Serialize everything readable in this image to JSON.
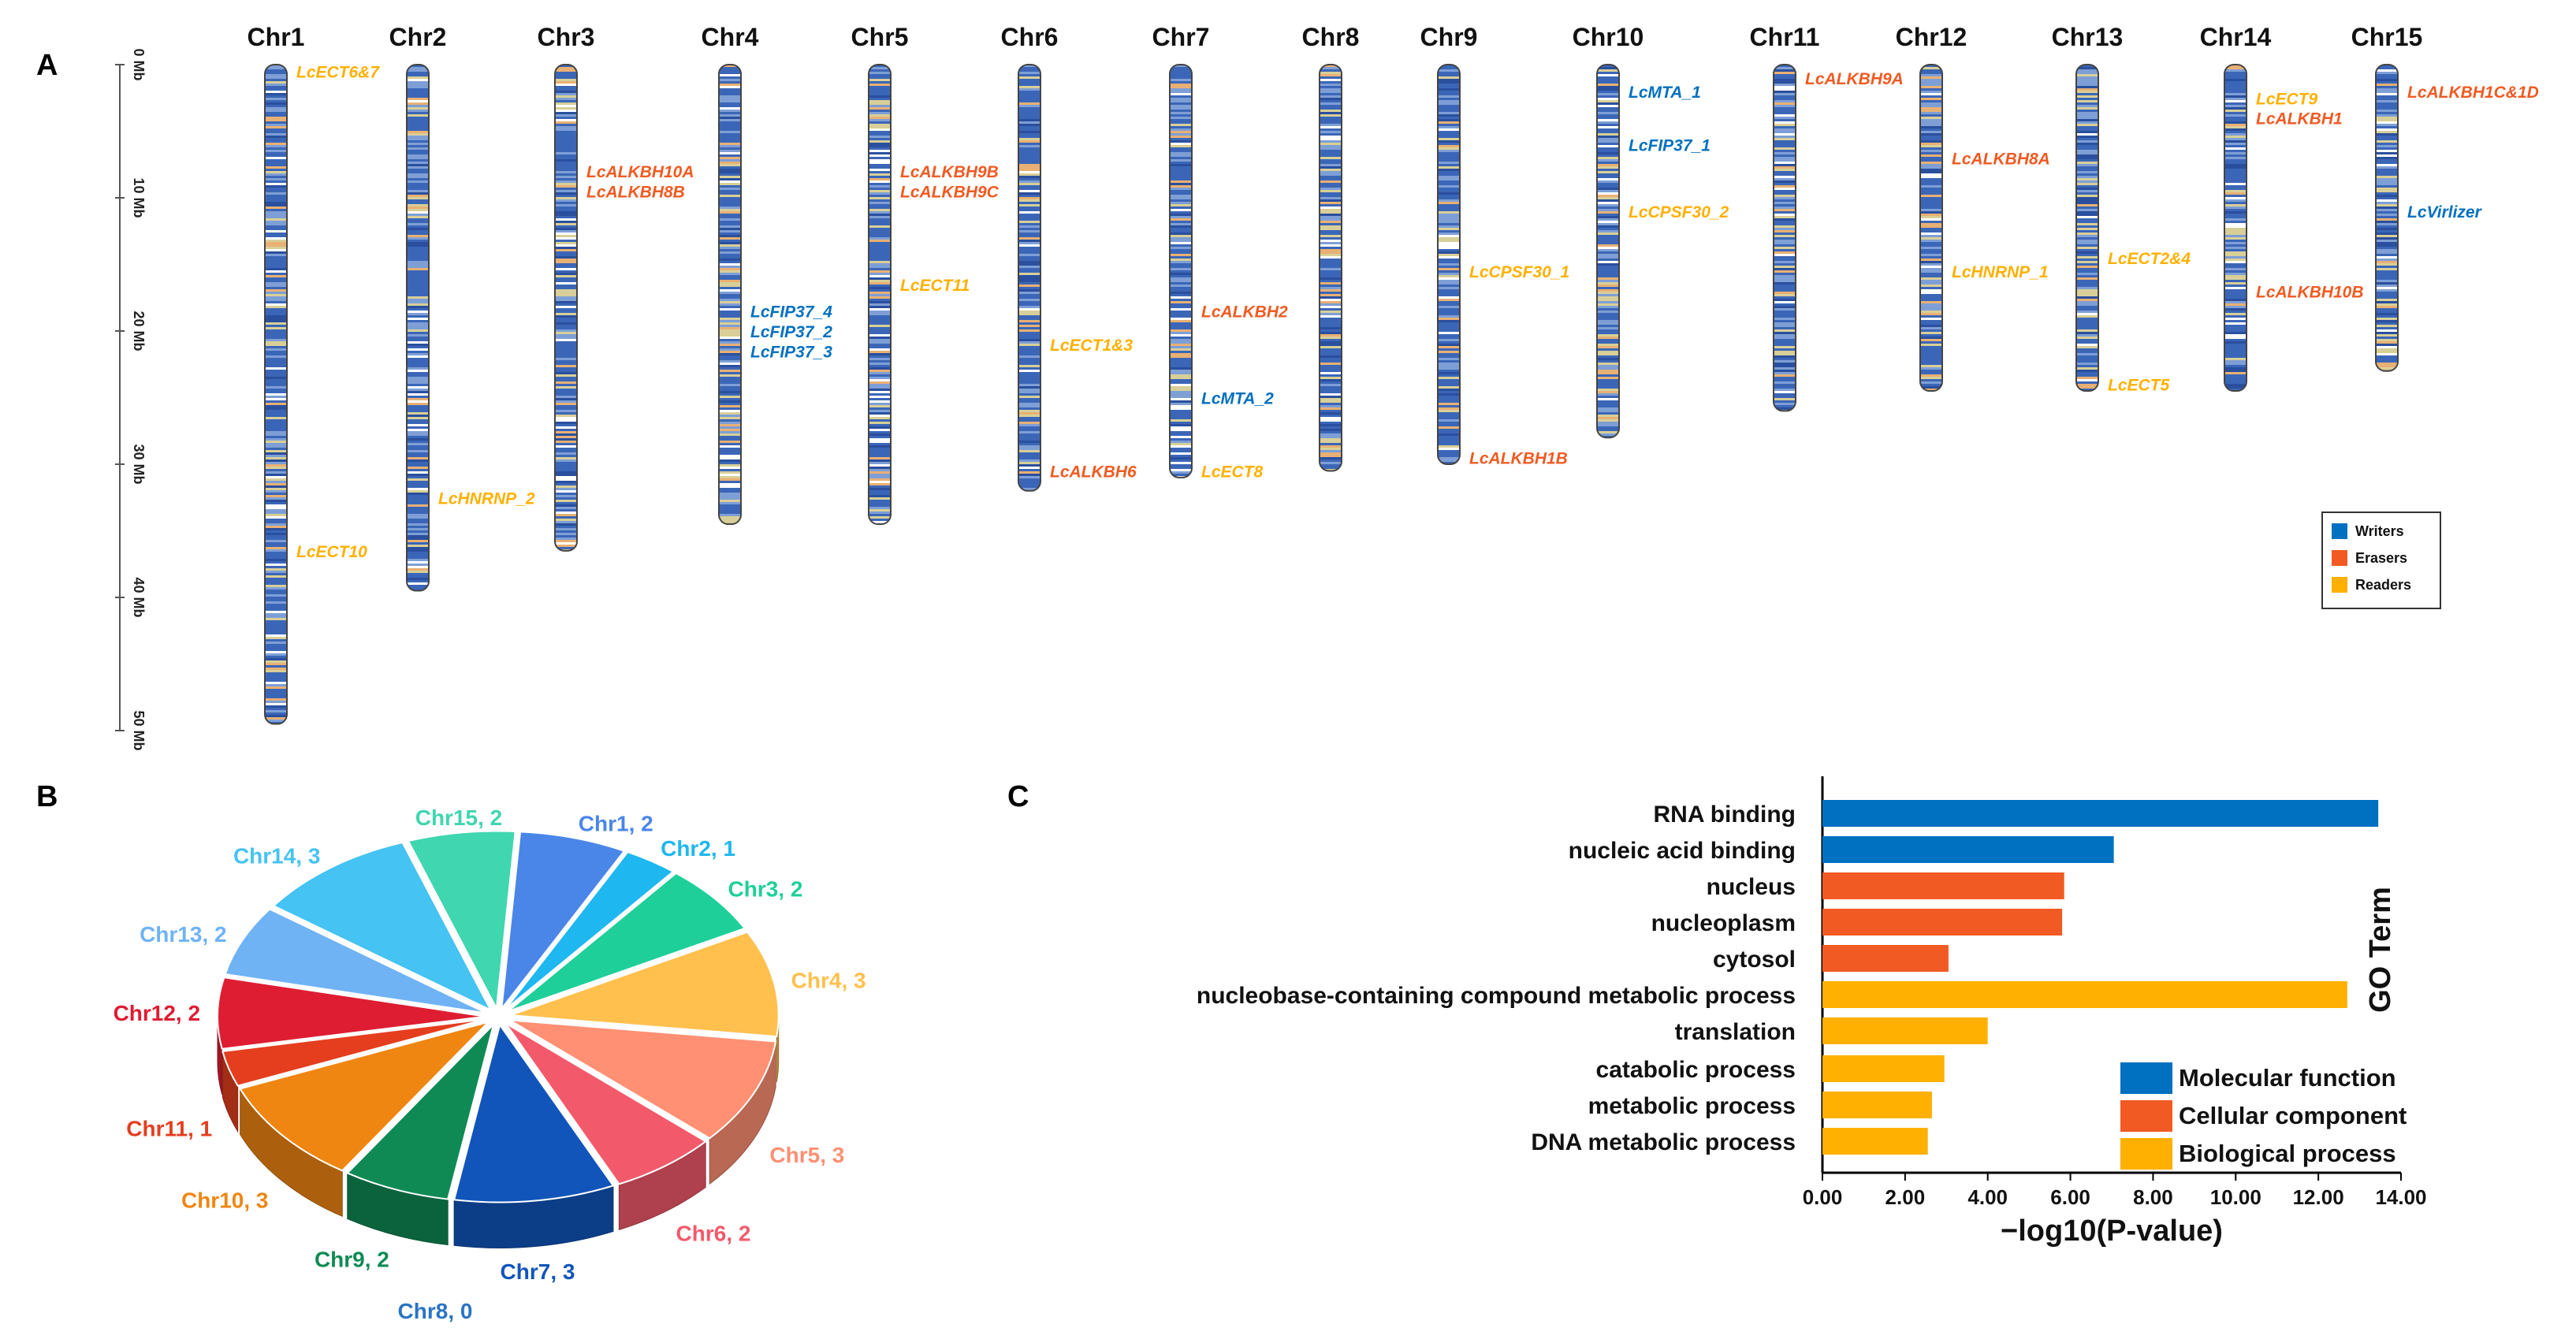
{
  "panels": {
    "a": "A",
    "b": "B",
    "c": "C"
  },
  "colors": {
    "writers": "#0070c0",
    "erasers": "#f15a22",
    "readers": "#ffb000"
  },
  "chart_data": [
    {
      "type": "chromosome_map",
      "panel": "A",
      "axis_ticks": [
        "0 Mb",
        "10 Mb",
        "20 Mb",
        "30 Mb",
        "40 Mb",
        "50 Mb"
      ],
      "ylim": [
        0,
        50
      ],
      "chromosomes": [
        {
          "name": "Chr1",
          "length": 49.5
        },
        {
          "name": "Chr2",
          "length": 39.5
        },
        {
          "name": "Chr3",
          "length": 36.5
        },
        {
          "name": "Chr4",
          "length": 34.5
        },
        {
          "name": "Chr5",
          "length": 34.5
        },
        {
          "name": "Chr6",
          "length": 32
        },
        {
          "name": "Chr7",
          "length": 31
        },
        {
          "name": "Chr8",
          "length": 30.5
        },
        {
          "name": "Chr9",
          "length": 30
        },
        {
          "name": "Chr10",
          "length": 28
        },
        {
          "name": "Chr11",
          "length": 26
        },
        {
          "name": "Chr12",
          "length": 24.5
        },
        {
          "name": "Chr13",
          "length": 24.5
        },
        {
          "name": "Chr14",
          "length": 24.5
        },
        {
          "name": "Chr15",
          "length": 23
        }
      ],
      "genes": [
        {
          "chr": "Chr1",
          "name": "LcECT6&7",
          "pos": 0.5,
          "label_pos": 0.5,
          "cls": "readers"
        },
        {
          "chr": "Chr1",
          "name": "LcECT10",
          "pos": 36.5,
          "label_pos": 36.5,
          "cls": "readers"
        },
        {
          "chr": "Chr2",
          "name": "LcHNRNP_2",
          "pos": 32.5,
          "label_pos": 32.5,
          "cls": "readers"
        },
        {
          "chr": "Chr3",
          "name": "LcALKBH10A",
          "pos": 8,
          "label_pos": 8,
          "cls": "erasers"
        },
        {
          "chr": "Chr3",
          "name": "LcALKBH8B",
          "pos": 9.5,
          "label_pos": 9.5,
          "cls": "erasers"
        },
        {
          "chr": "Chr4",
          "name": "LcFIP37_4",
          "pos": 18.5,
          "label_pos": 18.5,
          "cls": "writers"
        },
        {
          "chr": "Chr4",
          "name": "LcFIP37_2",
          "pos": 20,
          "label_pos": 20,
          "cls": "writers"
        },
        {
          "chr": "Chr4",
          "name": "LcFIP37_3",
          "pos": 21.5,
          "label_pos": 21.5,
          "cls": "writers"
        },
        {
          "chr": "Chr5",
          "name": "LcALKBH9B",
          "pos": 8,
          "label_pos": 8,
          "cls": "erasers"
        },
        {
          "chr": "Chr5",
          "name": "LcALKBH9C",
          "pos": 9.5,
          "label_pos": 9.5,
          "cls": "erasers"
        },
        {
          "chr": "Chr5",
          "name": "LcECT11",
          "pos": 16.5,
          "label_pos": 16.5,
          "cls": "readers"
        },
        {
          "chr": "Chr6",
          "name": "LcECT1&3",
          "pos": 21,
          "label_pos": 21,
          "cls": "readers"
        },
        {
          "chr": "Chr6",
          "name": "LcALKBH6",
          "pos": 30.5,
          "label_pos": 30.5,
          "cls": "erasers"
        },
        {
          "chr": "Chr7",
          "name": "LcALKBH2",
          "pos": 18.5,
          "label_pos": 18.5,
          "cls": "erasers"
        },
        {
          "chr": "Chr7",
          "name": "LcMTA_2",
          "pos": 25,
          "label_pos": 25,
          "cls": "writers"
        },
        {
          "chr": "Chr7",
          "name": "LcECT8",
          "pos": 30.5,
          "label_pos": 30.5,
          "cls": "readers"
        },
        {
          "chr": "Chr9",
          "name": "LcCPSF30_1",
          "pos": 15.5,
          "label_pos": 15.5,
          "cls": "readers"
        },
        {
          "chr": "Chr9",
          "name": "LcALKBH1B",
          "pos": 29.5,
          "label_pos": 29.5,
          "cls": "erasers"
        },
        {
          "chr": "Chr10",
          "name": "LcMTA_1",
          "pos": 2,
          "label_pos": 2,
          "cls": "writers"
        },
        {
          "chr": "Chr10",
          "name": "LcFIP37_1",
          "pos": 6,
          "label_pos": 6,
          "cls": "writers"
        },
        {
          "chr": "Chr10",
          "name": "LcCPSF30_2",
          "pos": 11,
          "label_pos": 11,
          "cls": "readers"
        },
        {
          "chr": "Chr11",
          "name": "LcALKBH9A",
          "pos": 1,
          "label_pos": 1,
          "cls": "erasers"
        },
        {
          "chr": "Chr12",
          "name": "LcALKBH8A",
          "pos": 7,
          "label_pos": 7,
          "cls": "erasers"
        },
        {
          "chr": "Chr12",
          "name": "LcHNRNP_1",
          "pos": 15.5,
          "label_pos": 15.5,
          "cls": "readers"
        },
        {
          "chr": "Chr13",
          "name": "LcECT2&4",
          "pos": 14.5,
          "label_pos": 14.5,
          "cls": "readers"
        },
        {
          "chr": "Chr13",
          "name": "LcECT5",
          "pos": 24,
          "label_pos": 24,
          "cls": "readers"
        },
        {
          "chr": "Chr14",
          "name": "LcECT9",
          "pos": 2.5,
          "label_pos": 2.5,
          "cls": "readers"
        },
        {
          "chr": "Chr14",
          "name": "LcALKBH1",
          "pos": 4,
          "label_pos": 4,
          "cls": "erasers"
        },
        {
          "chr": "Chr14",
          "name": "LcALKBH10B",
          "pos": 17,
          "label_pos": 17,
          "cls": "erasers"
        },
        {
          "chr": "Chr15",
          "name": "LcALKBH1C&1D",
          "pos": 2,
          "label_pos": 2,
          "cls": "erasers"
        },
        {
          "chr": "Chr15",
          "name": "LcVirlizer",
          "pos": 11,
          "label_pos": 11,
          "cls": "writers"
        }
      ],
      "legend": [
        {
          "label": "Writers",
          "cls": "writers"
        },
        {
          "label": "Erasers",
          "cls": "erasers"
        },
        {
          "label": "Readers",
          "cls": "readers"
        }
      ],
      "legend_position": "right"
    },
    {
      "type": "pie",
      "panel": "B",
      "style": "3d-exploded",
      "slices": [
        {
          "label": "Chr1, 2",
          "value": 2,
          "color": "#4a86e8"
        },
        {
          "label": "Chr2, 1",
          "value": 1,
          "color": "#1fb7f0"
        },
        {
          "label": "Chr3, 2",
          "value": 2,
          "color": "#1fcf99"
        },
        {
          "label": "Chr4, 3",
          "value": 3,
          "color": "#ffc04d"
        },
        {
          "label": "Chr5, 3",
          "value": 3,
          "color": "#ff9073"
        },
        {
          "label": "Chr6, 2",
          "value": 2,
          "color": "#f25a6b"
        },
        {
          "label": "Chr7, 3",
          "value": 3,
          "color": "#1155bb"
        },
        {
          "label": "Chr8, 0",
          "value": 0,
          "color": "#2a74c4"
        },
        {
          "label": "Chr9, 2",
          "value": 2,
          "color": "#0f8a55"
        },
        {
          "label": "Chr10, 3",
          "value": 3,
          "color": "#ef8612"
        },
        {
          "label": "Chr11, 1",
          "value": 1,
          "color": "#e43e1e"
        },
        {
          "label": "Chr12, 2",
          "value": 2,
          "color": "#de1d33"
        },
        {
          "label": "Chr13, 2",
          "value": 2,
          "color": "#6fb3f5"
        },
        {
          "label": "Chr14, 3",
          "value": 3,
          "color": "#45c3f2"
        },
        {
          "label": "Chr15, 2",
          "value": 2,
          "color": "#40d6b0"
        }
      ]
    },
    {
      "type": "bar",
      "panel": "C",
      "orientation": "horizontal",
      "categories": [
        "RNA binding",
        "nucleic acid binding",
        "nucleus",
        "nucleoplasm",
        "cytosol",
        "nucleobase-containing compound metabolic process",
        "translation",
        "catabolic process",
        "metabolic process",
        "DNA metabolic process"
      ],
      "values": [
        13.45,
        7.05,
        5.85,
        5.8,
        3.05,
        12.7,
        4.0,
        2.95,
        2.65,
        2.55
      ],
      "groups": [
        "mf",
        "mf",
        "cc",
        "cc",
        "cc",
        "bp",
        "bp",
        "bp",
        "bp",
        "bp"
      ],
      "group_colors": {
        "mf": "#0070c0",
        "cc": "#f15a22",
        "bp": "#ffb000"
      },
      "xlabel": "−log10(P-value)",
      "ylabel": "GO Term",
      "xlim": [
        0,
        14
      ],
      "xticks": [
        "0.00",
        "2.00",
        "4.00",
        "6.00",
        "8.00",
        "10.00",
        "12.00",
        "14.00"
      ],
      "legend": [
        {
          "label": "Molecular function",
          "group": "mf"
        },
        {
          "label": "Cellular component",
          "group": "cc"
        },
        {
          "label": "Biological process",
          "group": "bp"
        }
      ],
      "legend_position": "bottom-right"
    }
  ]
}
